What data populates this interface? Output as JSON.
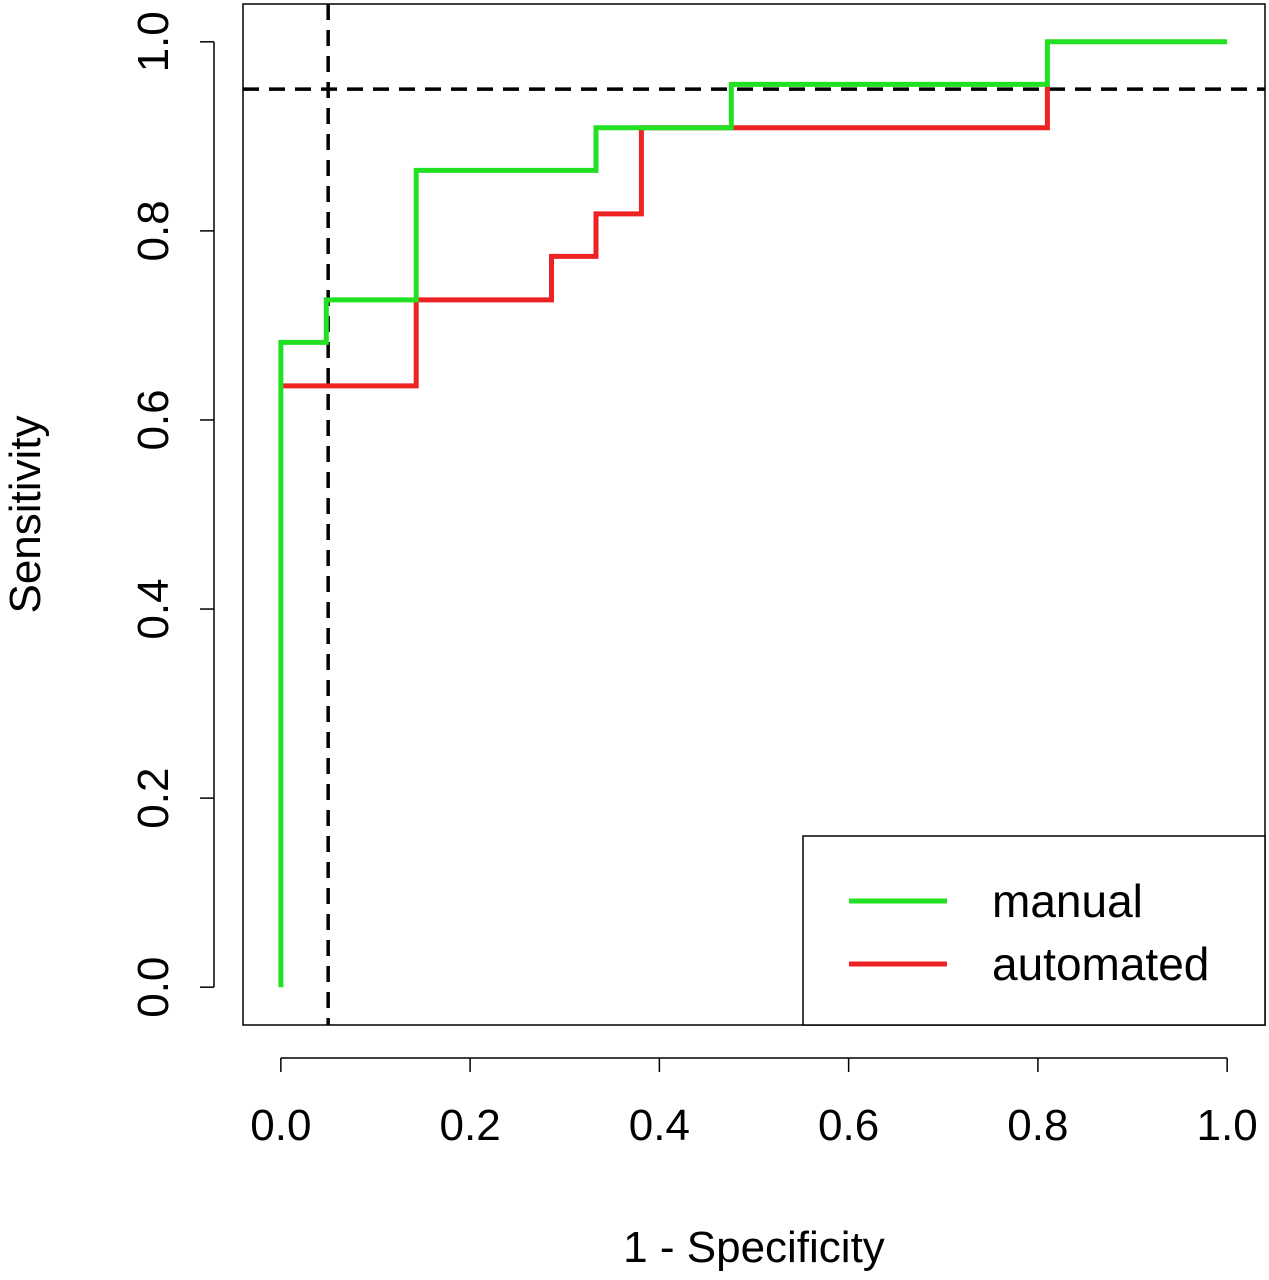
{
  "chart_data": {
    "type": "line",
    "title": "",
    "xlabel": "1 - Specificity",
    "ylabel": "Sensitivity",
    "xlim": [
      -0.04,
      1.04
    ],
    "ylim": [
      -0.04,
      1.04
    ],
    "x_ticks": [
      0.0,
      0.2,
      0.4,
      0.6,
      0.8,
      1.0
    ],
    "x_tick_labels": [
      "0.0",
      "0.2",
      "0.4",
      "0.6",
      "0.8",
      "1.0"
    ],
    "y_ticks": [
      0.0,
      0.2,
      0.4,
      0.6,
      0.8,
      1.0
    ],
    "y_tick_labels": [
      "0.0",
      "0.2",
      "0.4",
      "0.6",
      "0.8",
      "1.0"
    ],
    "grid": false,
    "legend_position": "bottom-right",
    "series": [
      {
        "name": "manual",
        "color": "#22e022",
        "step": true,
        "x": [
          0.0,
          0.0,
          0.048,
          0.048,
          0.143,
          0.143,
          0.333,
          0.333,
          0.476,
          0.476,
          0.81,
          0.81,
          1.0
        ],
        "y": [
          0.0,
          0.682,
          0.682,
          0.727,
          0.727,
          0.864,
          0.864,
          0.909,
          0.909,
          0.955,
          0.955,
          1.0,
          1.0
        ]
      },
      {
        "name": "automated",
        "color": "#ee2222",
        "step": true,
        "x": [
          0.0,
          0.0,
          0.143,
          0.143,
          0.286,
          0.286,
          0.333,
          0.333,
          0.381,
          0.381,
          0.81,
          0.81
        ],
        "y": [
          0.636,
          0.636,
          0.636,
          0.727,
          0.727,
          0.773,
          0.773,
          0.818,
          0.818,
          0.909,
          0.909,
          0.955
        ]
      }
    ],
    "reference_lines": [
      {
        "orientation": "vertical",
        "x": 0.05,
        "style": "dashed",
        "color": "#000000"
      },
      {
        "orientation": "horizontal",
        "y": 0.95,
        "style": "dashed",
        "color": "#000000"
      }
    ]
  }
}
